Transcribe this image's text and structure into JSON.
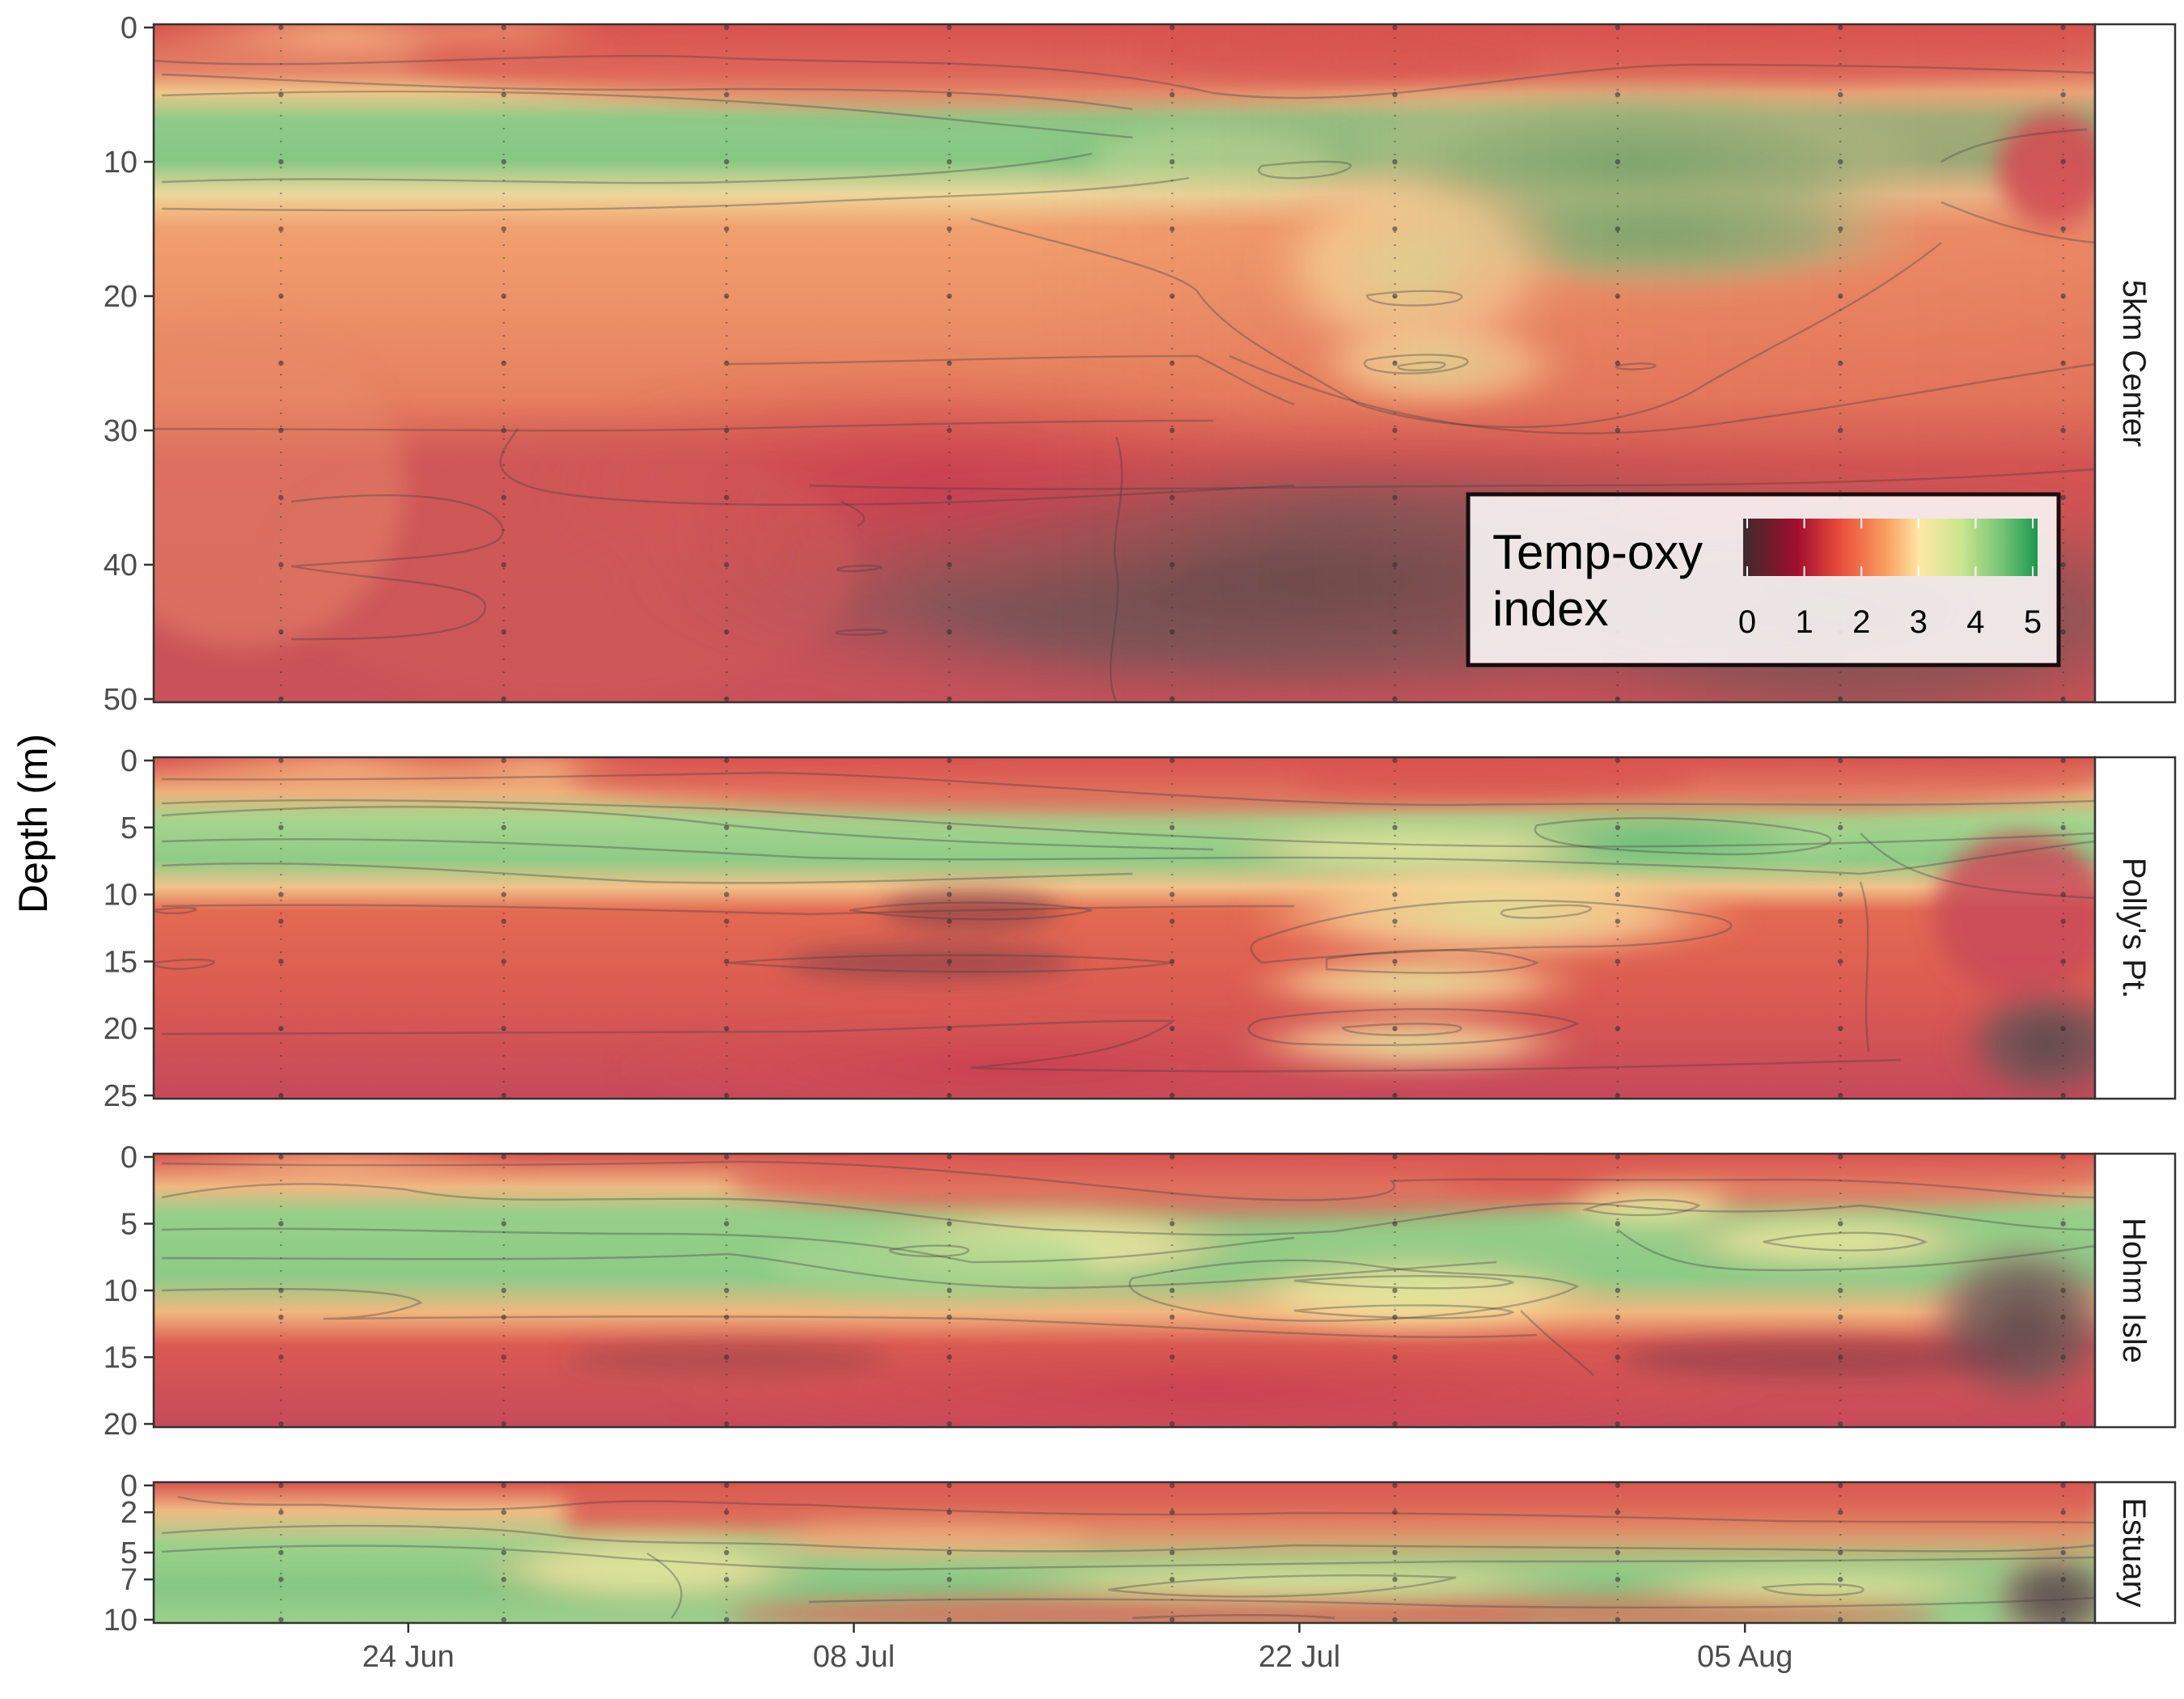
{
  "chart_data": {
    "type": "heatmap",
    "description_axis": {
      "ylabel": "Depth (m)",
      "x_ticks": [
        "24 Jun",
        "08 Jul",
        "22 Jul",
        "05 Aug"
      ]
    },
    "legend": {
      "title_line1": "Temp-oxy",
      "title_line2": "index",
      "range": [
        0,
        5
      ],
      "ticks": [
        "0",
        "1",
        "2",
        "3",
        "4",
        "5"
      ],
      "colors": [
        "#3d2b2b",
        "#a10d2e",
        "#e8483a",
        "#f89b5d",
        "#fee8a6",
        "#cbe68f",
        "#74c476",
        "#1a9850"
      ],
      "placement": "inside-bottom-right of first panel"
    },
    "panels": [
      {
        "name": "5km Center",
        "y_ticks": [
          "0",
          "10",
          "20",
          "30",
          "40",
          "50"
        ],
        "y_tick_values": [
          0,
          10,
          20,
          30,
          40,
          50
        ],
        "ylim": [
          0,
          50
        ],
        "sample_depths": [
          0,
          5,
          10,
          15,
          20,
          25,
          30,
          35,
          40,
          45,
          50
        ]
      },
      {
        "name": "Polly's Pt.",
        "y_ticks": [
          "0",
          "5",
          "10",
          "15",
          "20",
          "25"
        ],
        "y_tick_values": [
          0,
          5,
          10,
          15,
          20,
          25
        ],
        "ylim": [
          0,
          25
        ],
        "sample_depths": [
          0,
          5,
          10,
          12,
          15,
          20,
          25
        ]
      },
      {
        "name": "Hohm Isle",
        "y_ticks": [
          "0",
          "5",
          "10",
          "15",
          "20"
        ],
        "y_tick_values": [
          0,
          5,
          10,
          15,
          20
        ],
        "ylim": [
          0,
          20
        ],
        "sample_depths": [
          0,
          5,
          10,
          12,
          15,
          20
        ]
      },
      {
        "name": "Estuary",
        "y_ticks": [
          "0",
          "2",
          "5",
          "7",
          "10"
        ],
        "y_tick_values": [
          0,
          2,
          5,
          7,
          10
        ],
        "ylim": [
          0,
          10
        ],
        "sample_depths": [
          0,
          2,
          5,
          7,
          10
        ]
      }
    ],
    "sample_dates": [
      "2021-06-20",
      "2021-06-27",
      "2021-07-04",
      "2021-07-11",
      "2021-07-18",
      "2021-07-25",
      "2021-08-01",
      "2021-08-08",
      "2021-08-15"
    ],
    "x_range": [
      "2021-06-16",
      "2021-08-16"
    ]
  }
}
